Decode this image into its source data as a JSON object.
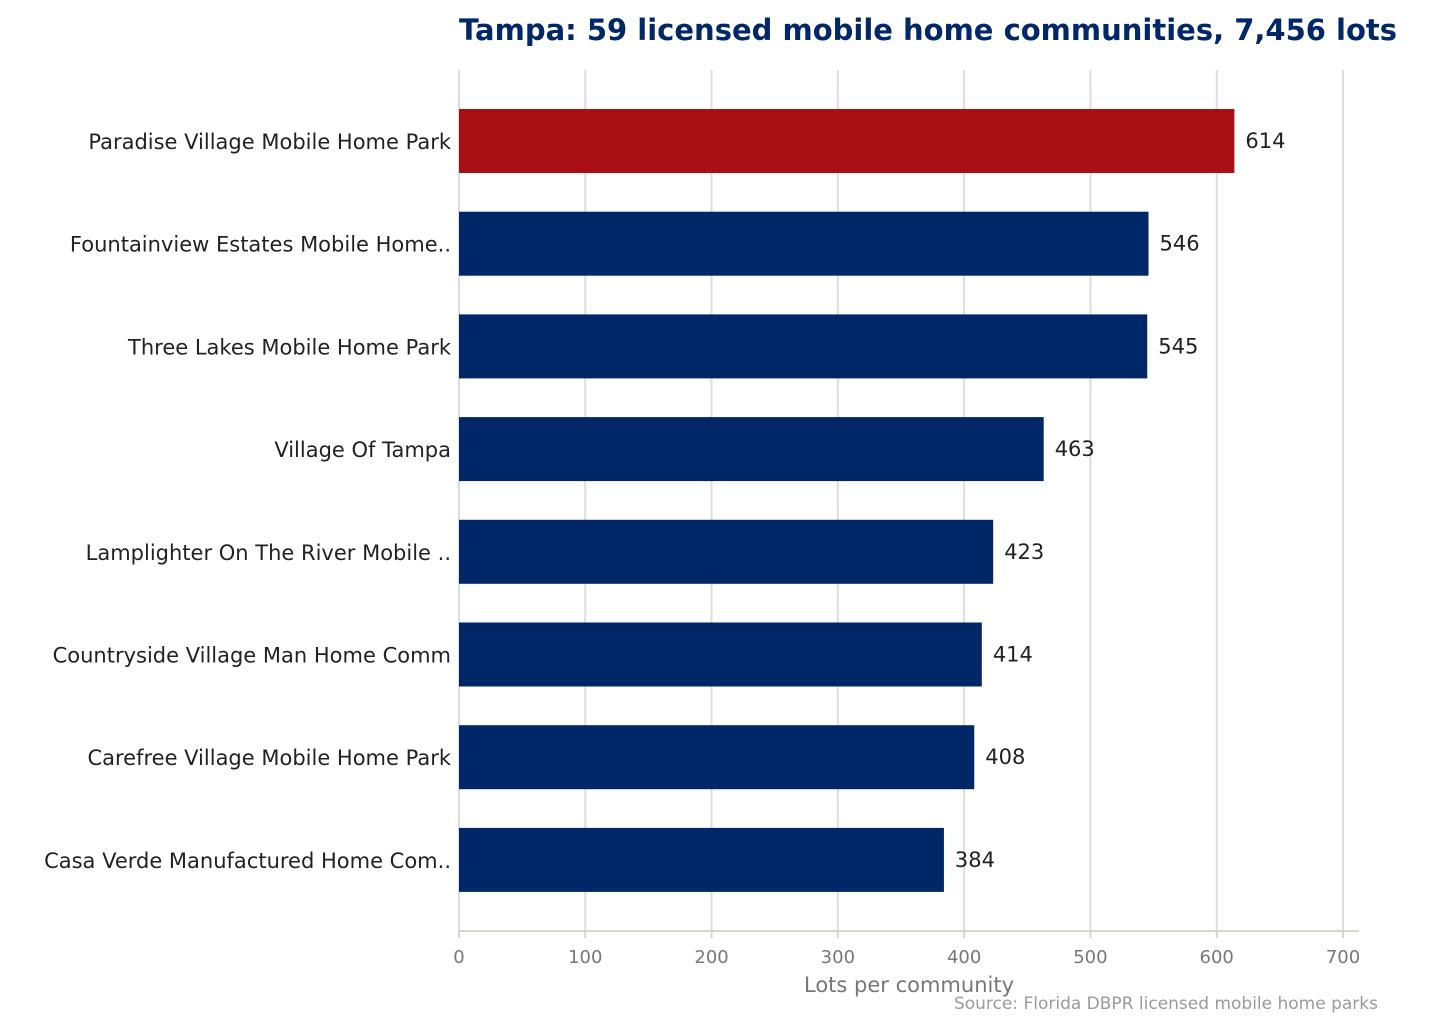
{
  "chart_data": {
    "type": "bar",
    "orientation": "horizontal",
    "title": "Tampa: 59 licensed mobile home communities, 7,456 lots",
    "xlabel": "Lots per community",
    "ylabel": "",
    "source": "Source: Florida DBPR licensed mobile home parks",
    "xlim": [
      0,
      700
    ],
    "xticks": [
      "0",
      "100",
      "200",
      "300",
      "400",
      "500",
      "600",
      "700"
    ],
    "grid": true,
    "categories": [
      "Paradise Village Mobile Home Park",
      "Fountainview Estates Mobile Home..",
      "Three Lakes Mobile Home Park",
      "Village Of Tampa",
      "Lamplighter On The River Mobile ..",
      "Countryside Village Man Home Comm",
      "Carefree Village Mobile Home Park",
      "Casa Verde Manufactured Home Com.."
    ],
    "values": [
      614,
      546,
      545,
      463,
      423,
      414,
      408,
      384
    ],
    "value_labels": [
      "614",
      "546",
      "545",
      "463",
      "423",
      "414",
      "408",
      "384"
    ],
    "highlight_index": 0,
    "colors": {
      "bar": "#002868",
      "highlight": "#a81015"
    }
  }
}
